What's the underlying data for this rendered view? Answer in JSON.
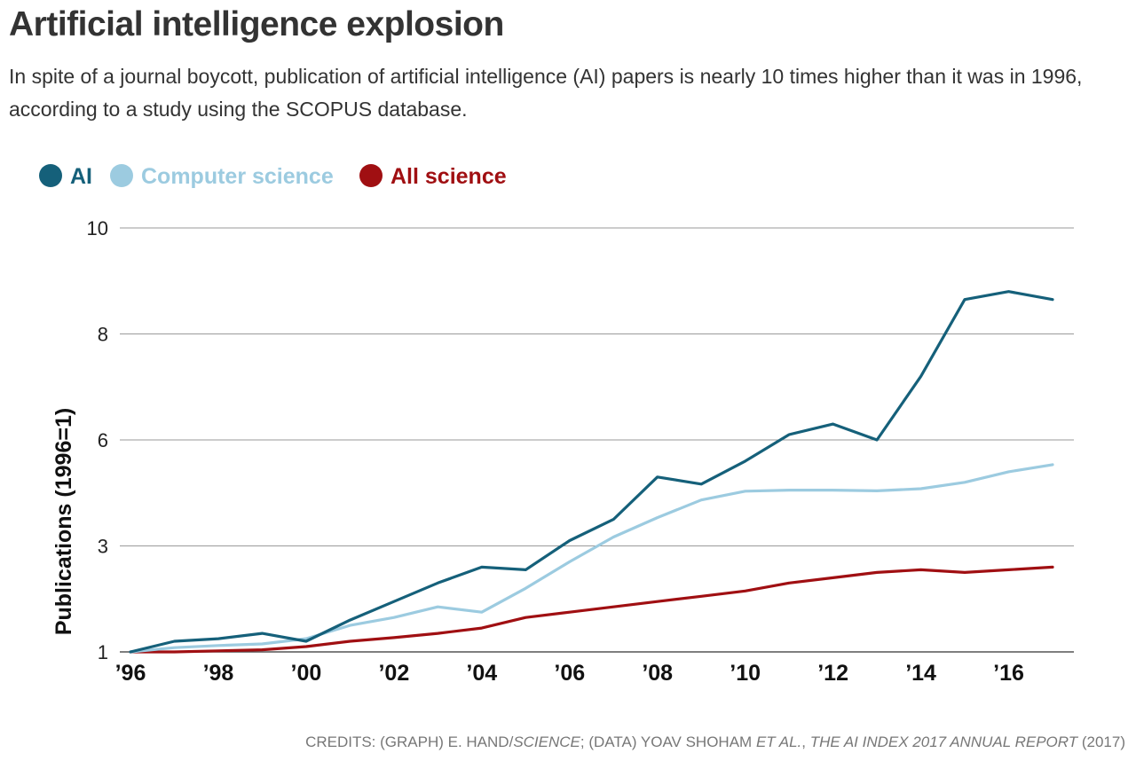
{
  "title": "Artificial intelligence explosion",
  "subtitle": "In spite of a journal boycott, publication of artificial intelligence (AI) papers is nearly 10 times higher than it was in 1996, according to a study using the SCOPUS database.",
  "credits": {
    "prefix": "CREDITS: (GRAPH) E. HAND/",
    "source1": "SCIENCE",
    "mid": "; (DATA) YOAV SHOHAM ",
    "etal": "ET AL.",
    "comma": ", ",
    "report": "THE AI INDEX 2017 ANNUAL REPORT",
    "year": " (2017)"
  },
  "chart_data": {
    "type": "line",
    "title": "Artificial intelligence explosion",
    "xlabel": "",
    "ylabel": "Publications (1996=1)",
    "x": [
      1996,
      1997,
      1998,
      1999,
      2000,
      2001,
      2002,
      2003,
      2004,
      2005,
      2006,
      2007,
      2008,
      2009,
      2010,
      2011,
      2012,
      2013,
      2014,
      2015,
      2016,
      2017
    ],
    "x_tick_labels": [
      "’96",
      "’98",
      "’00",
      "’02",
      "’04",
      "’06",
      "’08",
      "’10",
      "’12",
      "’14",
      "’16"
    ],
    "x_tick_values": [
      1996,
      1998,
      2000,
      2002,
      2004,
      2006,
      2008,
      2010,
      2012,
      2014,
      2016
    ],
    "y_tick_labels": [
      "1",
      "3",
      "6",
      "8",
      "10"
    ],
    "y_tick_positions": [
      0,
      1,
      2,
      3,
      4
    ],
    "grid": true,
    "legend_position": "top-left",
    "series": [
      {
        "name": "AI",
        "color": "#15607a",
        "values": [
          1.0,
          1.2,
          1.25,
          1.35,
          1.2,
          1.6,
          1.95,
          2.3,
          2.6,
          2.55,
          3.15,
          3.75,
          4.95,
          4.75,
          5.4,
          6.1,
          6.3,
          6.0,
          7.2,
          8.65,
          8.8,
          8.65
        ]
      },
      {
        "name": "Computer science",
        "color": "#9ccbe0",
        "values": [
          1.0,
          1.08,
          1.12,
          1.15,
          1.25,
          1.5,
          1.65,
          1.85,
          1.75,
          2.2,
          2.7,
          3.25,
          3.8,
          4.3,
          4.55,
          4.58,
          4.58,
          4.56,
          4.62,
          4.8,
          5.1,
          5.3
        ]
      },
      {
        "name": "All science",
        "color": "#a00f12",
        "values": [
          1.0,
          1.0,
          1.02,
          1.04,
          1.1,
          1.2,
          1.27,
          1.35,
          1.45,
          1.65,
          1.75,
          1.85,
          1.95,
          2.05,
          2.15,
          2.3,
          2.4,
          2.5,
          2.55,
          2.5,
          2.55,
          2.6
        ]
      }
    ]
  }
}
